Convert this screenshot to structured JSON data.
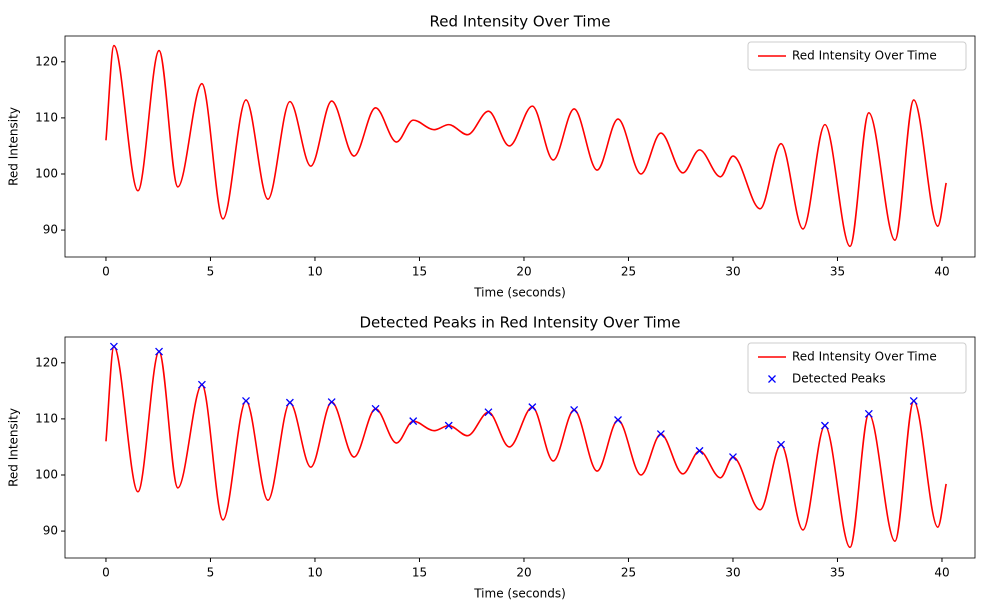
{
  "chart_data": [
    {
      "type": "line",
      "title": "Red Intensity Over Time",
      "xlabel": "Time (seconds)",
      "ylabel": "Red Intensity",
      "xlim": [
        -1.96,
        41.58
      ],
      "ylim": [
        85.2,
        124.6
      ],
      "xticks": [
        0,
        5,
        10,
        15,
        20,
        25,
        30,
        35,
        40
      ],
      "yticks": [
        90,
        100,
        110,
        120
      ],
      "legend": "upper right",
      "series": [
        {
          "name": "Red Intensity Over Time",
          "color": "red",
          "x": [
            0,
            0.38,
            1.53,
            2.54,
            3.44,
            4.59,
            5.6,
            6.7,
            7.75,
            8.8,
            9.8,
            10.8,
            11.87,
            12.9,
            13.9,
            14.7,
            15.7,
            16.4,
            17.3,
            18.3,
            19.3,
            20.4,
            21.4,
            22.4,
            23.5,
            24.5,
            25.6,
            26.55,
            27.6,
            28.4,
            29.4,
            30.0,
            31.3,
            32.3,
            33.35,
            34.4,
            35.6,
            36.5,
            37.75,
            38.65,
            39.8,
            40.2
          ],
          "values": [
            106,
            122.9,
            97.0,
            122.0,
            97.7,
            116.1,
            92.0,
            113.2,
            95.5,
            112.9,
            101.4,
            113.0,
            103.2,
            111.8,
            105.7,
            109.6,
            107.9,
            108.8,
            107.0,
            111.2,
            105.0,
            112.1,
            102.5,
            111.6,
            100.7,
            109.8,
            100.0,
            107.3,
            100.2,
            104.3,
            99.5,
            103.2,
            93.8,
            105.4,
            90.2,
            108.8,
            87.1,
            110.9,
            88.2,
            113.2,
            90.7,
            98.4
          ]
        }
      ]
    },
    {
      "type": "line",
      "title": "Detected Peaks in Red Intensity Over Time",
      "xlabel": "Time (seconds)",
      "ylabel": "Red Intensity",
      "xlim": [
        -1.96,
        41.58
      ],
      "ylim": [
        85.2,
        124.6
      ],
      "xticks": [
        0,
        5,
        10,
        15,
        20,
        25,
        30,
        35,
        40
      ],
      "yticks": [
        90,
        100,
        110,
        120
      ],
      "legend": "upper right",
      "series": [
        {
          "name": "Red Intensity Over Time",
          "color": "red",
          "x": [
            0,
            0.38,
            1.53,
            2.54,
            3.44,
            4.59,
            5.6,
            6.7,
            7.75,
            8.8,
            9.8,
            10.8,
            11.87,
            12.9,
            13.9,
            14.7,
            15.7,
            16.4,
            17.3,
            18.3,
            19.3,
            20.4,
            21.4,
            22.4,
            23.5,
            24.5,
            25.6,
            26.55,
            27.6,
            28.4,
            29.4,
            30.0,
            31.3,
            32.3,
            33.35,
            34.4,
            35.6,
            36.5,
            37.75,
            38.65,
            39.8,
            40.2
          ],
          "values": [
            106,
            122.9,
            97.0,
            122.0,
            97.7,
            116.1,
            92.0,
            113.2,
            95.5,
            112.9,
            101.4,
            113.0,
            103.2,
            111.8,
            105.7,
            109.6,
            107.9,
            108.8,
            107.0,
            111.2,
            105.0,
            112.1,
            102.5,
            111.6,
            100.7,
            109.8,
            100.0,
            107.3,
            100.2,
            104.3,
            99.5,
            103.2,
            93.8,
            105.4,
            90.2,
            108.8,
            87.1,
            110.9,
            88.2,
            113.2,
            90.7,
            98.4
          ]
        },
        {
          "name": "Detected Peaks",
          "color": "blue",
          "marker": "x",
          "x": [
            0.38,
            2.54,
            4.59,
            6.7,
            8.8,
            10.8,
            12.9,
            14.7,
            16.4,
            18.3,
            20.4,
            22.4,
            24.5,
            26.55,
            28.4,
            30.0,
            32.3,
            34.4,
            36.5,
            38.65
          ],
          "values": [
            122.9,
            122.0,
            116.1,
            113.2,
            112.9,
            113.0,
            111.8,
            109.6,
            108.8,
            111.2,
            112.1,
            111.6,
            109.8,
            107.3,
            104.3,
            103.2,
            105.4,
            108.8,
            110.9,
            113.2
          ]
        }
      ]
    }
  ]
}
